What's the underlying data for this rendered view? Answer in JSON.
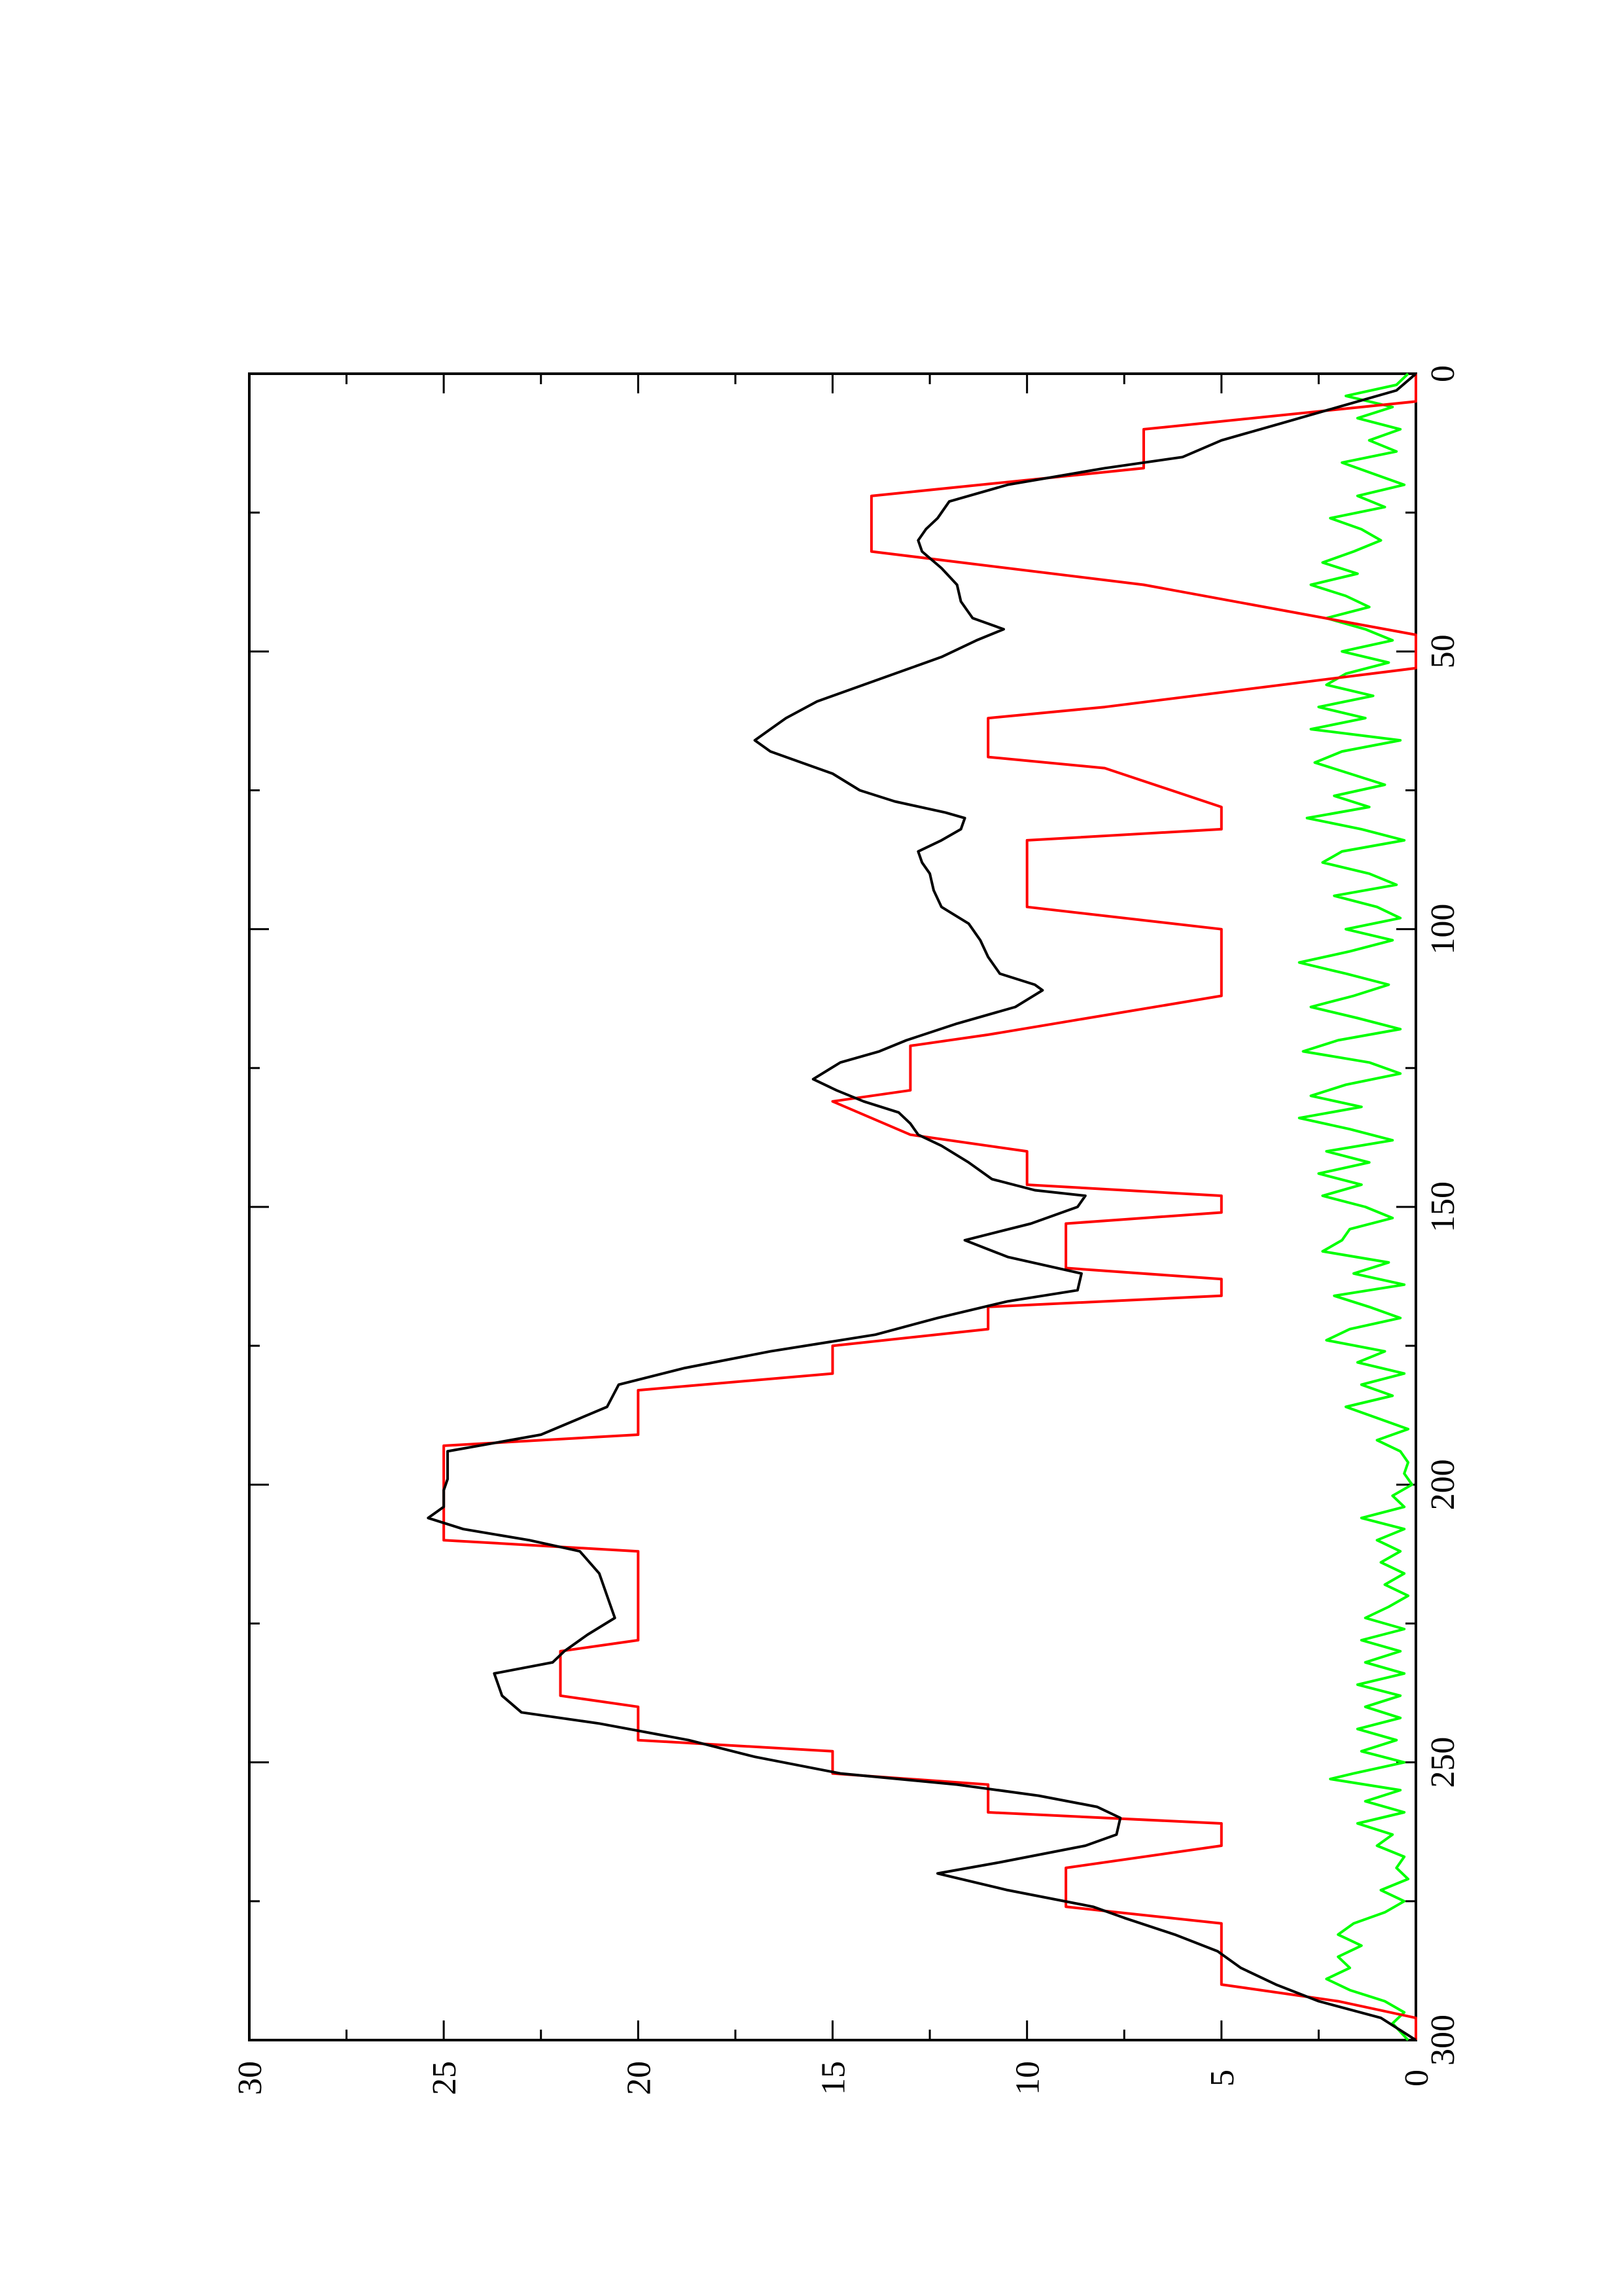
{
  "chart_data": {
    "type": "line",
    "orientation": "rotated-90-clockwise",
    "title": "",
    "xlabel": "",
    "ylabel": "",
    "xlim": [
      0,
      300
    ],
    "ylim": [
      0,
      30
    ],
    "x_ticks": [
      "0",
      "50",
      "100",
      "150",
      "200",
      "250",
      "300"
    ],
    "y_ticks": [
      "0",
      "5",
      "10",
      "15",
      "20",
      "25",
      "30"
    ],
    "grid": false,
    "legend": "none",
    "series": [
      {
        "color": "#ff0000",
        "points": [
          [
            0,
            0
          ],
          [
            5,
            0
          ],
          [
            10,
            7
          ],
          [
            17,
            7
          ],
          [
            22,
            14
          ],
          [
            32,
            14
          ],
          [
            38,
            7
          ],
          [
            47,
            0
          ],
          [
            53,
            0
          ],
          [
            60,
            8
          ],
          [
            62,
            11
          ],
          [
            69,
            11
          ],
          [
            71,
            8
          ],
          [
            78,
            5
          ],
          [
            82,
            5
          ],
          [
            84,
            10
          ],
          [
            96,
            10
          ],
          [
            100,
            5
          ],
          [
            112,
            5
          ],
          [
            119,
            11
          ],
          [
            121,
            13
          ],
          [
            129,
            13
          ],
          [
            131,
            15
          ],
          [
            137,
            13
          ],
          [
            140,
            10
          ],
          [
            146,
            10
          ],
          [
            148,
            5
          ],
          [
            151,
            5
          ],
          [
            153,
            9
          ],
          [
            161,
            9
          ],
          [
            163,
            5
          ],
          [
            166,
            5
          ],
          [
            168,
            11
          ],
          [
            172,
            11
          ],
          [
            175,
            15
          ],
          [
            180,
            15
          ],
          [
            183,
            20
          ],
          [
            191,
            20
          ],
          [
            193,
            25
          ],
          [
            210,
            25
          ],
          [
            212,
            20
          ],
          [
            228,
            20
          ],
          [
            230,
            22
          ],
          [
            238,
            22
          ],
          [
            240,
            20
          ],
          [
            246,
            20
          ],
          [
            248,
            15
          ],
          [
            252,
            15
          ],
          [
            254,
            11
          ],
          [
            259,
            11
          ],
          [
            261,
            5
          ],
          [
            265,
            5
          ],
          [
            269,
            9
          ],
          [
            276,
            9
          ],
          [
            279,
            5
          ],
          [
            290,
            5
          ],
          [
            293,
            2
          ],
          [
            296,
            0
          ],
          [
            300,
            0
          ]
        ]
      },
      {
        "color": "#000000",
        "points": [
          [
            0,
            0
          ],
          [
            3,
            0.5
          ],
          [
            6,
            2
          ],
          [
            9,
            3.5
          ],
          [
            12,
            5
          ],
          [
            15,
            6
          ],
          [
            17,
            8
          ],
          [
            20,
            10.5
          ],
          [
            23,
            12
          ],
          [
            26,
            12.3
          ],
          [
            28,
            12.6
          ],
          [
            30,
            12.8
          ],
          [
            32,
            12.7
          ],
          [
            35,
            12.2
          ],
          [
            38,
            11.8
          ],
          [
            41,
            11.7
          ],
          [
            44,
            11.4
          ],
          [
            46,
            10.6
          ],
          [
            48,
            11.3
          ],
          [
            51,
            12.2
          ],
          [
            53,
            13
          ],
          [
            56,
            14.2
          ],
          [
            59,
            15.4
          ],
          [
            62,
            16.2
          ],
          [
            64,
            16.6
          ],
          [
            66,
            17
          ],
          [
            68,
            16.6
          ],
          [
            70,
            15.8
          ],
          [
            72,
            15
          ],
          [
            75,
            14.3
          ],
          [
            77,
            13.4
          ],
          [
            79,
            12.1
          ],
          [
            80,
            11.6
          ],
          [
            82,
            11.7
          ],
          [
            84,
            12.2
          ],
          [
            86,
            12.8
          ],
          [
            88,
            12.7
          ],
          [
            90,
            12.5
          ],
          [
            93,
            12.4
          ],
          [
            96,
            12.2
          ],
          [
            99,
            11.5
          ],
          [
            102,
            11.2
          ],
          [
            105,
            11
          ],
          [
            108,
            10.7
          ],
          [
            110,
            9.8
          ],
          [
            111,
            9.6
          ],
          [
            114,
            10.3
          ],
          [
            117,
            11.8
          ],
          [
            120,
            13.1
          ],
          [
            122,
            13.8
          ],
          [
            124,
            14.8
          ],
          [
            127,
            15.5
          ],
          [
            129,
            14.9
          ],
          [
            131,
            14.2
          ],
          [
            133,
            13.3
          ],
          [
            135,
            13
          ],
          [
            137,
            12.8
          ],
          [
            139,
            12.2
          ],
          [
            142,
            11.5
          ],
          [
            145,
            10.9
          ],
          [
            147,
            9.8
          ],
          [
            148,
            8.5
          ],
          [
            150,
            8.7
          ],
          [
            153,
            9.9
          ],
          [
            156,
            11.6
          ],
          [
            159,
            10.5
          ],
          [
            162,
            8.6
          ],
          [
            165,
            8.7
          ],
          [
            167,
            10.5
          ],
          [
            170,
            12.3
          ],
          [
            173,
            13.9
          ],
          [
            176,
            16.6
          ],
          [
            179,
            18.8
          ],
          [
            182,
            20.5
          ],
          [
            186,
            20.8
          ],
          [
            191,
            22.5
          ],
          [
            194,
            24.9
          ],
          [
            199,
            24.9
          ],
          [
            201,
            25
          ],
          [
            204,
            25
          ],
          [
            206,
            25.4
          ],
          [
            208,
            24.5
          ],
          [
            210,
            22.8
          ],
          [
            212,
            21.5
          ],
          [
            216,
            21
          ],
          [
            220,
            20.8
          ],
          [
            224,
            20.6
          ],
          [
            227,
            21.3
          ],
          [
            230,
            21.9
          ],
          [
            232,
            22.2
          ],
          [
            234,
            23.7
          ],
          [
            236,
            23.6
          ],
          [
            238,
            23.5
          ],
          [
            241,
            23
          ],
          [
            243,
            21
          ],
          [
            246,
            18.7
          ],
          [
            249,
            17
          ],
          [
            252,
            14.8
          ],
          [
            254,
            11.8
          ],
          [
            256,
            9.7
          ],
          [
            258,
            8.2
          ],
          [
            260,
            7.6
          ],
          [
            263,
            7.7
          ],
          [
            265,
            8.5
          ],
          [
            268,
            10.7
          ],
          [
            270,
            12.3
          ],
          [
            273,
            10.5
          ],
          [
            276,
            8.3
          ],
          [
            278,
            7.5
          ],
          [
            281,
            6.2
          ],
          [
            284,
            5.1
          ],
          [
            287,
            4.5
          ],
          [
            290,
            3.6
          ],
          [
            293,
            2.5
          ],
          [
            296,
            0.9
          ],
          [
            300,
            0
          ]
        ]
      },
      {
        "color": "#00ff00",
        "points": [
          [
            0,
            0.2
          ],
          [
            2,
            0.5
          ],
          [
            4,
            1.8
          ],
          [
            6,
            0.6
          ],
          [
            8,
            1.5
          ],
          [
            10,
            0.4
          ],
          [
            12,
            1.2
          ],
          [
            14,
            0.5
          ],
          [
            16,
            1.9
          ],
          [
            18,
            1.1
          ],
          [
            20,
            0.3
          ],
          [
            22,
            1.5
          ],
          [
            24,
            0.8
          ],
          [
            26,
            2.2
          ],
          [
            28,
            1.4
          ],
          [
            30,
            0.9
          ],
          [
            32,
            1.6
          ],
          [
            34,
            2.4
          ],
          [
            36,
            1.5
          ],
          [
            38,
            2.7
          ],
          [
            40,
            1.8
          ],
          [
            42,
            1.2
          ],
          [
            44,
            2.3
          ],
          [
            46,
            1.3
          ],
          [
            48,
            0.6
          ],
          [
            50,
            1.9
          ],
          [
            52,
            0.7
          ],
          [
            54,
            1.8
          ],
          [
            56,
            2.3
          ],
          [
            58,
            1.1
          ],
          [
            60,
            2.5
          ],
          [
            62,
            1.3
          ],
          [
            64,
            2.7
          ],
          [
            66,
            0.4
          ],
          [
            68,
            1.9
          ],
          [
            70,
            2.6
          ],
          [
            72,
            1.7
          ],
          [
            74,
            0.8
          ],
          [
            76,
            2.1
          ],
          [
            78,
            1.2
          ],
          [
            80,
            2.8
          ],
          [
            82,
            1.4
          ],
          [
            84,
            0.3
          ],
          [
            86,
            1.9
          ],
          [
            88,
            2.4
          ],
          [
            90,
            1.2
          ],
          [
            92,
            0.5
          ],
          [
            94,
            2.1
          ],
          [
            96,
            1.0
          ],
          [
            98,
            0.4
          ],
          [
            100,
            1.8
          ],
          [
            102,
            0.6
          ],
          [
            104,
            1.7
          ],
          [
            106,
            3.0
          ],
          [
            108,
            1.8
          ],
          [
            110,
            0.7
          ],
          [
            112,
            1.6
          ],
          [
            114,
            2.7
          ],
          [
            116,
            1.5
          ],
          [
            118,
            0.4
          ],
          [
            120,
            2.0
          ],
          [
            122,
            2.9
          ],
          [
            124,
            1.2
          ],
          [
            126,
            0.4
          ],
          [
            128,
            1.8
          ],
          [
            130,
            2.7
          ],
          [
            132,
            1.4
          ],
          [
            134,
            3.0
          ],
          [
            136,
            1.7
          ],
          [
            138,
            0.6
          ],
          [
            140,
            2.3
          ],
          [
            142,
            1.2
          ],
          [
            144,
            2.5
          ],
          [
            146,
            1.4
          ],
          [
            148,
            2.4
          ],
          [
            150,
            1.3
          ],
          [
            152,
            0.6
          ],
          [
            154,
            1.7
          ],
          [
            156,
            1.9
          ],
          [
            158,
            2.4
          ],
          [
            160,
            0.7
          ],
          [
            162,
            1.6
          ],
          [
            164,
            0.3
          ],
          [
            166,
            2.1
          ],
          [
            168,
            1.2
          ],
          [
            170,
            0.4
          ],
          [
            172,
            1.7
          ],
          [
            174,
            2.3
          ],
          [
            176,
            0.8
          ],
          [
            178,
            1.5
          ],
          [
            180,
            0.3
          ],
          [
            182,
            1.4
          ],
          [
            184,
            0.6
          ],
          [
            186,
            1.8
          ],
          [
            188,
            1.0
          ],
          [
            190,
            0.2
          ],
          [
            192,
            1.0
          ],
          [
            194,
            0.4
          ],
          [
            196,
            0.2
          ],
          [
            198,
            0.3
          ],
          [
            200,
            0.1
          ],
          [
            202,
            0.6
          ],
          [
            204,
            0.3
          ],
          [
            206,
            1.4
          ],
          [
            208,
            0.3
          ],
          [
            210,
            1.0
          ],
          [
            212,
            0.4
          ],
          [
            214,
            0.9
          ],
          [
            216,
            0.3
          ],
          [
            218,
            0.8
          ],
          [
            220,
            0.2
          ],
          [
            222,
            0.7
          ],
          [
            224,
            1.3
          ],
          [
            226,
            0.3
          ],
          [
            228,
            1.4
          ],
          [
            230,
            0.4
          ],
          [
            232,
            1.3
          ],
          [
            234,
            0.3
          ],
          [
            236,
            1.5
          ],
          [
            238,
            0.4
          ],
          [
            240,
            1.3
          ],
          [
            242,
            0.4
          ],
          [
            244,
            1.5
          ],
          [
            246,
            0.5
          ],
          [
            248,
            1.4
          ],
          [
            250,
            0.3
          ],
          [
            252,
            1.6
          ],
          [
            253,
            2.2
          ],
          [
            255,
            0.4
          ],
          [
            257,
            1.3
          ],
          [
            259,
            0.3
          ],
          [
            261,
            1.5
          ],
          [
            263,
            0.6
          ],
          [
            265,
            1.0
          ],
          [
            267,
            0.3
          ],
          [
            269,
            0.5
          ],
          [
            271,
            0.2
          ],
          [
            273,
            0.9
          ],
          [
            275,
            0.3
          ],
          [
            277,
            0.8
          ],
          [
            279,
            1.6
          ],
          [
            281,
            2.0
          ],
          [
            283,
            1.4
          ],
          [
            285,
            2.0
          ],
          [
            287,
            1.7
          ],
          [
            289,
            2.3
          ],
          [
            291,
            1.7
          ],
          [
            293,
            0.8
          ],
          [
            295,
            0.3
          ],
          [
            297,
            0.6
          ],
          [
            300,
            0.2
          ]
        ]
      }
    ]
  }
}
